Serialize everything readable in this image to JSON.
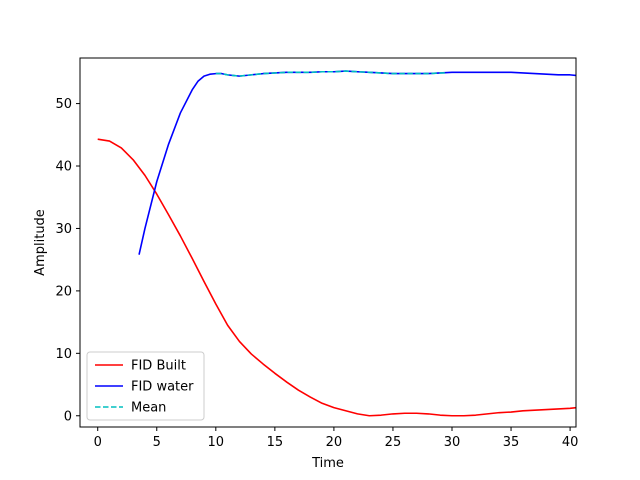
{
  "chart_data": {
    "type": "line",
    "title": "",
    "xlabel": "Time",
    "ylabel": "Amplitude",
    "xlim": [
      -1.5,
      40.5
    ],
    "ylim": [
      -1.8,
      57.3
    ],
    "xticks": [
      0,
      5,
      10,
      15,
      20,
      25,
      30,
      35,
      40
    ],
    "yticks": [
      0,
      10,
      20,
      30,
      40,
      50
    ],
    "grid": false,
    "legend_position": "lower-left",
    "series": [
      {
        "name": "FID Built",
        "color": "#ff0000",
        "style": "solid",
        "x": [
          0,
          1,
          2,
          3,
          4,
          5,
          6,
          7,
          8,
          9,
          10,
          11,
          12,
          13,
          14,
          15,
          16,
          17,
          18,
          19,
          20,
          21,
          22,
          23,
          24,
          25,
          26,
          27,
          28,
          29,
          30,
          31,
          32,
          33,
          34,
          35,
          36,
          37,
          38,
          39,
          40,
          40.5
        ],
        "y": [
          44.3,
          44.0,
          42.9,
          41.0,
          38.5,
          35.5,
          32.2,
          28.8,
          25.2,
          21.5,
          17.9,
          14.5,
          11.9,
          9.9,
          8.3,
          6.8,
          5.4,
          4.1,
          3.0,
          2.0,
          1.3,
          0.8,
          0.3,
          0.0,
          0.1,
          0.3,
          0.4,
          0.4,
          0.3,
          0.1,
          0.0,
          0.0,
          0.1,
          0.3,
          0.5,
          0.6,
          0.8,
          0.9,
          1.0,
          1.1,
          1.2,
          1.3
        ]
      },
      {
        "name": "FID water",
        "color": "#0000ff",
        "style": "solid",
        "x": [
          3.5,
          4,
          5,
          6,
          7,
          8,
          8.5,
          9,
          9.5,
          10,
          10.5,
          11,
          12,
          13,
          14,
          15,
          16,
          17,
          18,
          19,
          20,
          21,
          22,
          23,
          24,
          25,
          26,
          27,
          28,
          29,
          30,
          31,
          32,
          33,
          34,
          35,
          36,
          37,
          38,
          39,
          40,
          40.5
        ],
        "y": [
          25.8,
          30.0,
          37.5,
          43.5,
          48.5,
          52.2,
          53.6,
          54.4,
          54.7,
          54.8,
          54.8,
          54.6,
          54.4,
          54.6,
          54.8,
          54.9,
          55.0,
          55.0,
          55.0,
          55.1,
          55.1,
          55.2,
          55.1,
          55.0,
          54.9,
          54.8,
          54.8,
          54.8,
          54.8,
          54.9,
          55.0,
          55.0,
          55.0,
          55.0,
          55.0,
          55.0,
          54.9,
          54.8,
          54.7,
          54.6,
          54.6,
          54.5
        ]
      },
      {
        "name": "Mean",
        "color": "#00bfbf",
        "style": "dashed",
        "x": [
          10,
          10.5,
          11,
          12,
          13,
          14,
          15,
          16,
          17,
          18,
          19,
          20,
          21,
          22,
          23,
          24,
          25,
          26,
          27,
          28,
          29,
          29.5
        ],
        "y": [
          54.8,
          54.8,
          54.6,
          54.4,
          54.6,
          54.8,
          54.9,
          55.0,
          55.0,
          55.0,
          55.1,
          55.1,
          55.2,
          55.1,
          55.0,
          54.9,
          54.8,
          54.8,
          54.8,
          54.8,
          54.9,
          54.9
        ]
      }
    ]
  }
}
